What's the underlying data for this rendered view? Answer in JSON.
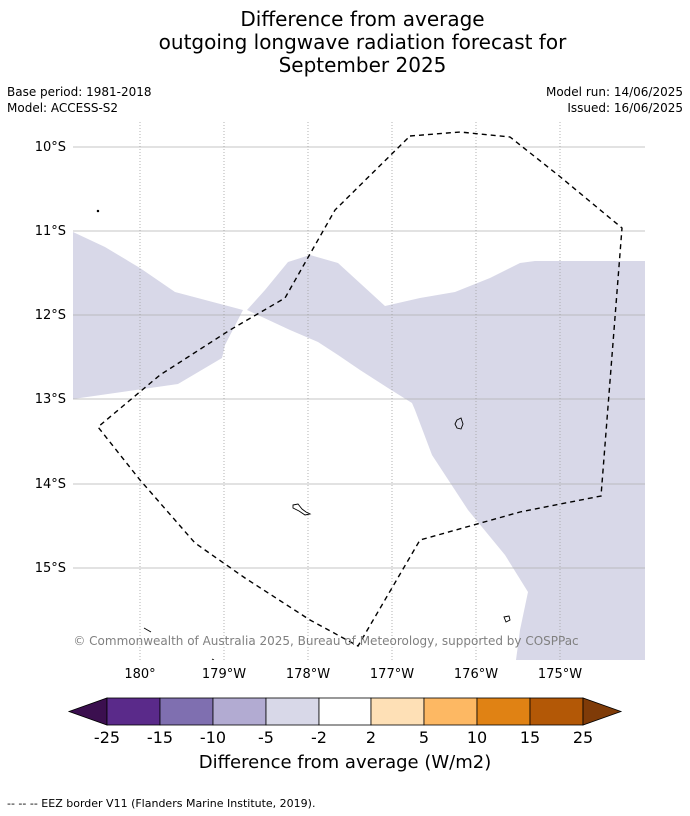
{
  "title": {
    "line1": "Difference from average",
    "line2": "outgoing longwave radiation forecast for",
    "line3": "September 2025"
  },
  "meta": {
    "base_period": "Base period: 1981-2018",
    "model": "Model: ACCESS-S2",
    "model_run": "Model run: 14/06/2025",
    "issued": "Issued: 16/06/2025"
  },
  "map": {
    "lat_labels": [
      "10°S",
      "11°S",
      "12°S",
      "13°S",
      "14°S",
      "15°S"
    ],
    "lon_labels": [
      "180°",
      "179°W",
      "178°W",
      "177°W",
      "176°W",
      "175°W"
    ],
    "attribution": "© Commonwealth of Australia 2025, Bureau of Meteorology, supported by COSPPac",
    "anomaly_fill_color": "#d8d8e8",
    "eez_line_color": "#000000"
  },
  "colorbar": {
    "title": "Difference from average (W/m2)",
    "tick_labels": [
      "-25",
      "-15",
      "-10",
      "-5",
      "-2",
      "2",
      "5",
      "10",
      "15",
      "25"
    ],
    "colors": [
      "#3b0f4f",
      "#5a2a8a",
      "#7f6fb0",
      "#b2abd2",
      "#d8d8e8",
      "#ffffff",
      "#fee0b6",
      "#fdb863",
      "#e08214",
      "#b35806",
      "#7f3b08"
    ]
  },
  "footnote": "--  --  -- EEZ border V11 (Flanders Marine Institute, 2019)."
}
